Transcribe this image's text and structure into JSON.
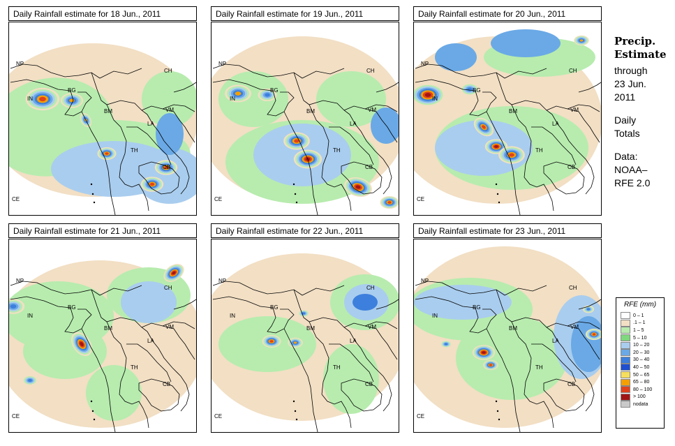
{
  "panels": [
    {
      "title": "Daily Rainfall estimate for  18 Jun., 2011"
    },
    {
      "title": "Daily Rainfall estimate for  19 Jun., 2011"
    },
    {
      "title": "Daily Rainfall estimate for  20 Jun., 2011"
    },
    {
      "title": "Daily Rainfall estimate for  21 Jun., 2011"
    },
    {
      "title": "Daily Rainfall estimate for  22 Jun., 2011"
    },
    {
      "title": "Daily Rainfall estimate for  23 Jun., 2011"
    }
  ],
  "map_labels": {
    "np": "NP",
    "ch": "CH",
    "in": "IN",
    "bg": "BG",
    "bm": "BM",
    "vm": "VM",
    "la": "LA",
    "th": "TH",
    "cb": "CB",
    "ce": "CE"
  },
  "side": {
    "title_line1": "Precip.",
    "title_line2": "Estimate",
    "through": "through",
    "date_line1": "23 Jun.",
    "date_line2": "2011",
    "daily_line1": "Daily",
    "daily_line2": "Totals",
    "data_line1": "Data:",
    "data_line2": "NOAA–",
    "data_line3": "RFE 2.0"
  },
  "legend": {
    "title": "RFE (mm)",
    "items": [
      {
        "label": "0 – 1",
        "color": "#ffffff"
      },
      {
        "label": ".1 – 1",
        "color": "#f2dfc4"
      },
      {
        "label": "1 – 5",
        "color": "#b7ecae"
      },
      {
        "label": "5 – 10",
        "color": "#7fd87d"
      },
      {
        "label": "10 – 20",
        "color": "#a9cdee"
      },
      {
        "label": "20 – 30",
        "color": "#6aa9e6"
      },
      {
        "label": "30 – 40",
        "color": "#3d7fdc"
      },
      {
        "label": "40 – 50",
        "color": "#1f4fd0"
      },
      {
        "label": "50 – 65",
        "color": "#f6de5e"
      },
      {
        "label": "65 – 80",
        "color": "#f4a000"
      },
      {
        "label": "80 – 100",
        "color": "#e0421c"
      },
      {
        "label": "> 100",
        "color": "#a11515"
      },
      {
        "label": "nodata",
        "color": "#c9c9c9"
      }
    ]
  }
}
